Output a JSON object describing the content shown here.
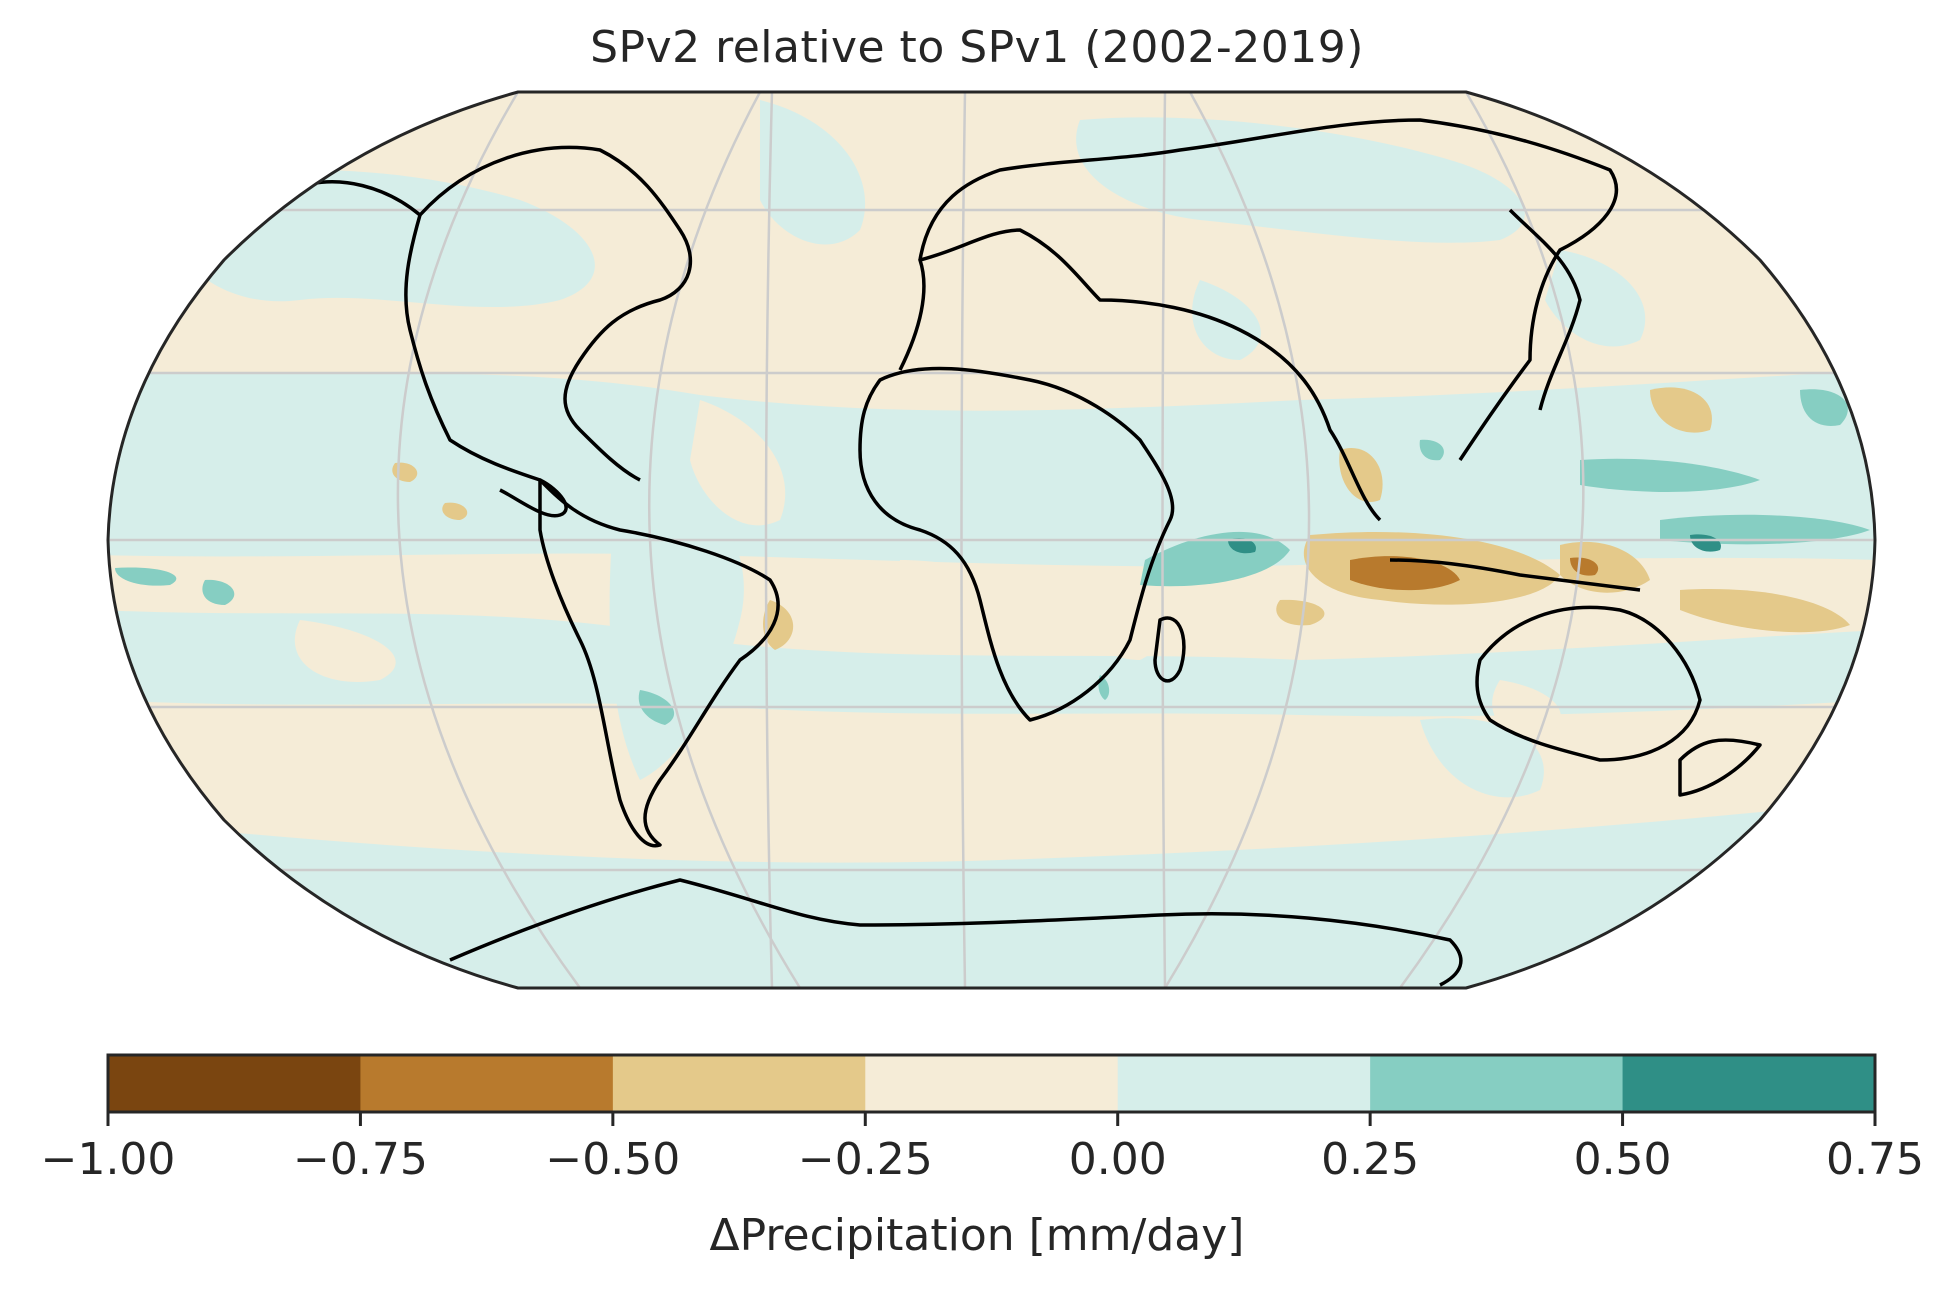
{
  "figure": {
    "title": "SPv2 relative to SPv1 (2002-2019)",
    "colorbar_label": "ΔPrecipitation [mm/day]"
  },
  "colorbar": {
    "bins": [
      {
        "from": -1.0,
        "to": -0.75,
        "color": "#7a4510"
      },
      {
        "from": -0.75,
        "to": -0.5,
        "color": "#b87a2d"
      },
      {
        "from": -0.5,
        "to": -0.25,
        "color": "#e4c98a"
      },
      {
        "from": -0.25,
        "to": 0.0,
        "color": "#f5ecd7"
      },
      {
        "from": 0.0,
        "to": 0.25,
        "color": "#d6eeea"
      },
      {
        "from": 0.25,
        "to": 0.5,
        "color": "#86cec2"
      },
      {
        "from": 0.5,
        "to": 0.75,
        "color": "#2f8f86"
      }
    ],
    "tick_labels": [
      "−1.00",
      "−0.75",
      "−0.50",
      "−0.25",
      "0.00",
      "0.25",
      "0.50",
      "0.75"
    ]
  },
  "map": {
    "projection": "Robinson",
    "gridlines": true,
    "background_color": "#f5ecd7",
    "coastline_color": "#000000"
  }
}
